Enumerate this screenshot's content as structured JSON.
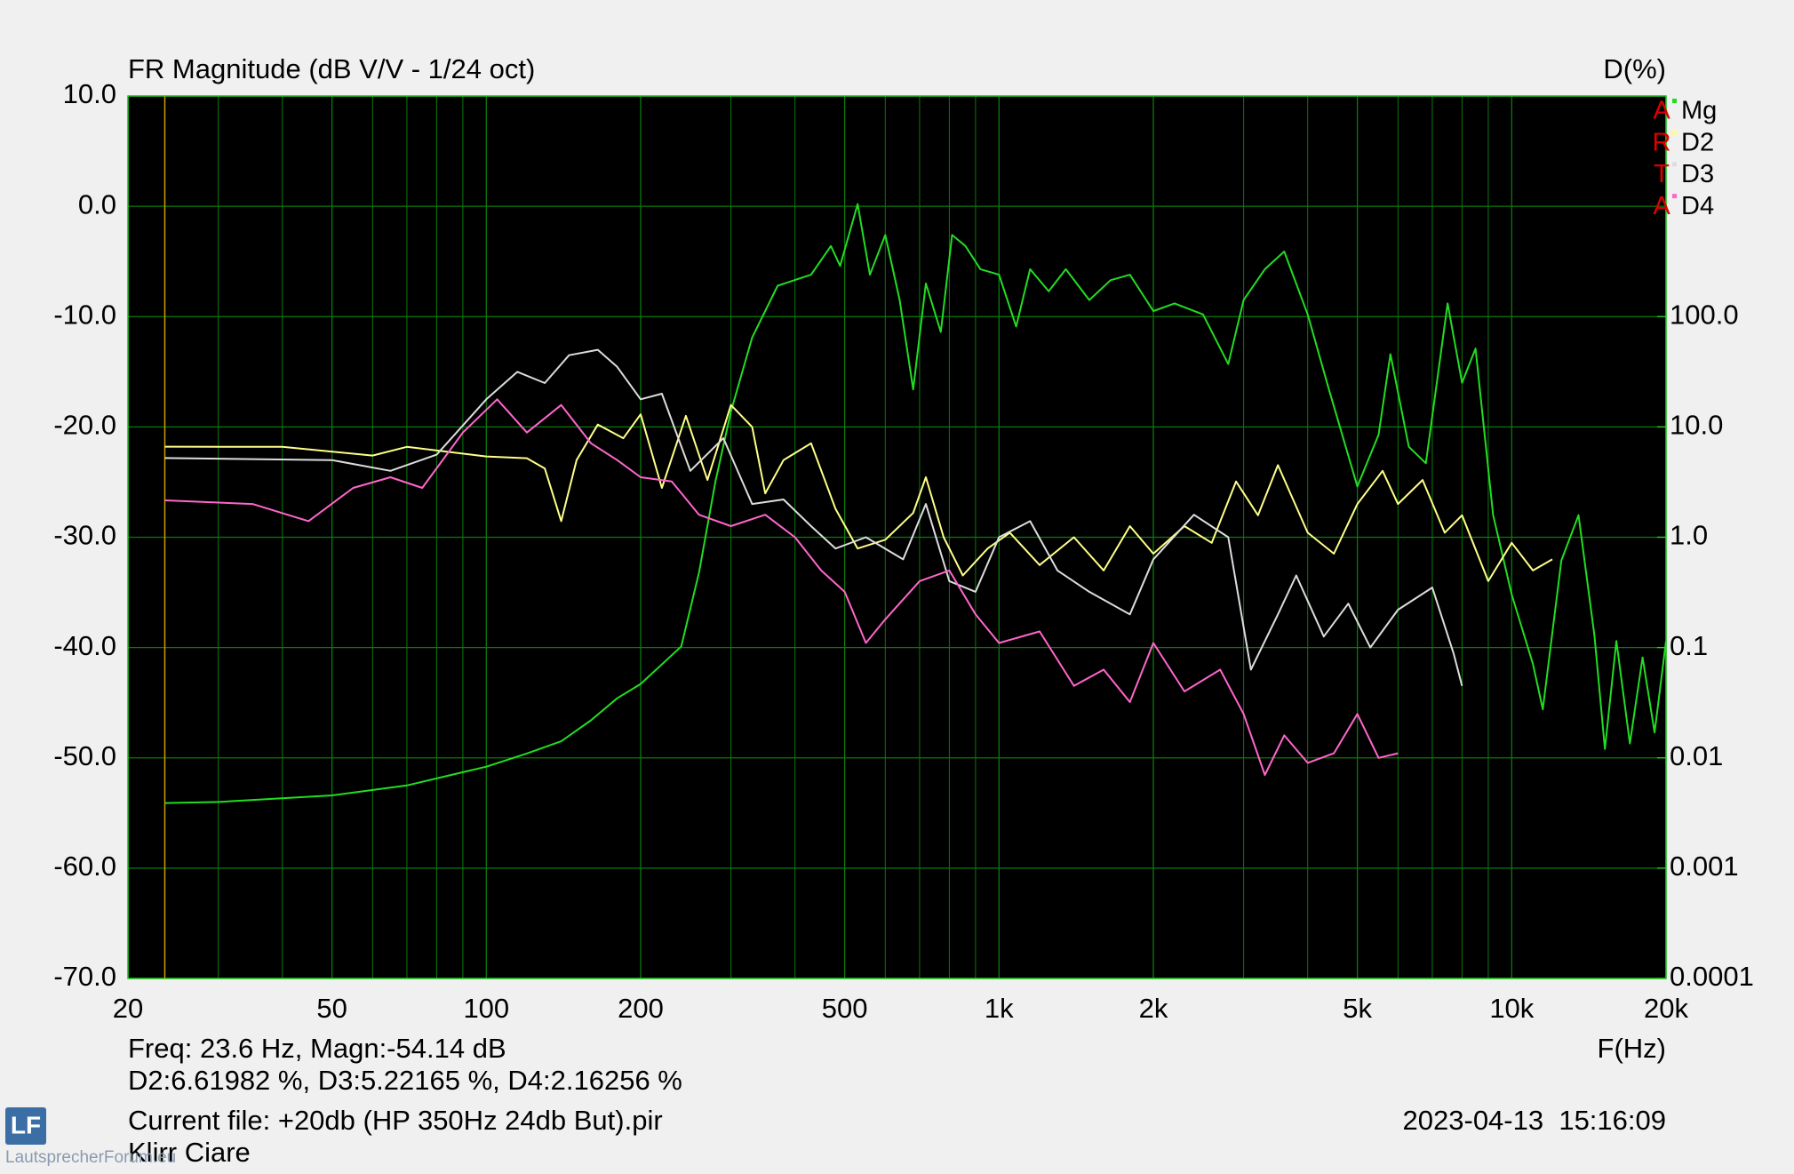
{
  "chart_data": {
    "type": "line",
    "title": "FR Magnitude (dB V/V - 1/24 oct)",
    "y2_label": "D(%)",
    "x_label": "F(Hz)",
    "xscale": "log",
    "y2scale": "log",
    "grid": true,
    "xlim": [
      20,
      20000
    ],
    "xticks": [
      20,
      50,
      100,
      200,
      500,
      {
        "value": 1000,
        "label": "1k"
      },
      {
        "value": 2000,
        "label": "2k"
      },
      {
        "value": 5000,
        "label": "5k"
      },
      {
        "value": 10000,
        "label": "10k"
      },
      {
        "value": 20000,
        "label": "20k"
      }
    ],
    "xminor_ticks": [
      30,
      40,
      60,
      70,
      80,
      90,
      300,
      400,
      600,
      700,
      800,
      900,
      3000,
      4000,
      6000,
      7000,
      8000,
      9000
    ],
    "ylim": [
      -70,
      10
    ],
    "yticks": [
      {
        "value": 10,
        "label": "10.0"
      },
      {
        "value": 0,
        "label": "0.0"
      },
      {
        "value": -10,
        "label": "-10.0"
      },
      {
        "value": -20,
        "label": "-20.0"
      },
      {
        "value": -30,
        "label": "-30.0"
      },
      {
        "value": -40,
        "label": "-40.0"
      },
      {
        "value": -50,
        "label": "-50.0"
      },
      {
        "value": -60,
        "label": "-60.0"
      },
      {
        "value": -70,
        "label": "-70.0"
      }
    ],
    "y2lim": [
      0.0001,
      10000
    ],
    "y2ticks": [
      {
        "value": 100,
        "label": "100.0"
      },
      {
        "value": 10,
        "label": "10.0"
      },
      {
        "value": 1,
        "label": "1.0"
      },
      0.1,
      0.01,
      0.001,
      0.0001
    ],
    "cursor_x": 23.6,
    "brand_letters": [
      "A",
      "R",
      "T",
      "A"
    ],
    "series": [
      {
        "name": "Mg",
        "color": "#22dd22",
        "x": [
          23.6,
          30,
          50,
          70,
          90,
          100,
          120,
          140,
          160,
          180,
          200,
          240,
          260,
          280,
          300,
          330,
          370,
          430,
          470,
          490,
          530,
          560,
          600,
          640,
          680,
          720,
          770,
          810,
          860,
          920,
          1000,
          1080,
          1150,
          1250,
          1350,
          1500,
          1650,
          1800,
          2000,
          2200,
          2500,
          2800,
          3000,
          3300,
          3600,
          4000,
          4400,
          5000,
          5500,
          5800,
          6300,
          6800,
          7500,
          8000,
          8500,
          9200,
          10000,
          11000,
          11500,
          12500,
          13500,
          14500,
          15200,
          16000,
          17000,
          18000,
          19000,
          20000
        ],
        "values": [
          -54.1,
          -54.0,
          -53.4,
          -52.5,
          -51.3,
          -50.8,
          -49.6,
          -48.5,
          -46.6,
          -44.6,
          -43.3,
          -39.9,
          -33.2,
          -24.9,
          -18.6,
          -11.9,
          -7.2,
          -6.2,
          -3.6,
          -5.4,
          0.2,
          -6.2,
          -2.6,
          -8.5,
          -16.6,
          -7.0,
          -11.4,
          -2.6,
          -3.6,
          -5.7,
          -6.2,
          -10.9,
          -5.7,
          -7.7,
          -5.7,
          -8.5,
          -6.7,
          -6.2,
          -9.5,
          -8.8,
          -9.8,
          -14.3,
          -8.5,
          -5.7,
          -4.1,
          -9.8,
          -16.6,
          -25.4,
          -20.7,
          -13.4,
          -21.8,
          -23.3,
          -8.8,
          -16.0,
          -12.9,
          -28.0,
          -35.2,
          -41.5,
          -45.6,
          -32.1,
          -28.0,
          -38.9,
          -49.2,
          -39.4,
          -48.7,
          -40.9,
          -47.7,
          -39.4
        ]
      },
      {
        "name": "D2",
        "color": "#ffff88",
        "axis": "y2",
        "x": [
          23.6,
          40,
          60,
          70,
          100,
          120,
          130,
          140,
          150,
          165,
          185,
          200,
          220,
          245,
          270,
          300,
          330,
          350,
          380,
          430,
          480,
          530,
          600,
          680,
          720,
          780,
          850,
          950,
          1050,
          1200,
          1400,
          1600,
          1800,
          2000,
          2300,
          2600,
          2900,
          3200,
          3500,
          4000,
          4500,
          5000,
          5600,
          6000,
          6700,
          7400,
          8000,
          9000,
          10000,
          11000,
          12000
        ],
        "values": [
          6.62,
          6.6,
          5.5,
          6.6,
          5.4,
          5.2,
          4.2,
          1.4,
          5.0,
          10.5,
          7.9,
          13,
          2.8,
          12.6,
          3.3,
          15.8,
          10,
          2.5,
          5,
          7.1,
          1.8,
          0.79,
          0.95,
          1.66,
          3.5,
          1.0,
          0.45,
          0.79,
          1.1,
          0.56,
          1.0,
          0.5,
          1.26,
          0.71,
          1.26,
          0.89,
          3.2,
          1.58,
          4.5,
          1.1,
          0.71,
          2.0,
          4.0,
          2.0,
          3.3,
          1.1,
          1.58,
          0.4,
          0.89,
          0.5,
          0.63
        ]
      },
      {
        "name": "D3",
        "color": "#dddddd",
        "axis": "y2",
        "x": [
          23.6,
          50,
          65,
          80,
          100,
          115,
          130,
          145,
          165,
          180,
          200,
          220,
          250,
          290,
          330,
          380,
          430,
          480,
          550,
          650,
          720,
          800,
          900,
          1000,
          1150,
          1300,
          1500,
          1800,
          2000,
          2400,
          2800,
          3100,
          3500,
          3800,
          4300,
          4800,
          5300,
          6000,
          7000,
          7700,
          8000
        ],
        "values": [
          5.22,
          5.0,
          4.0,
          5.6,
          17.8,
          31.6,
          25,
          44.7,
          50,
          35,
          17.8,
          20,
          4,
          7.9,
          2.0,
          2.2,
          1.26,
          0.79,
          1.0,
          0.63,
          2.0,
          0.4,
          0.32,
          1.0,
          1.4,
          0.5,
          0.32,
          0.2,
          0.63,
          1.6,
          1.0,
          0.063,
          0.2,
          0.45,
          0.126,
          0.25,
          0.1,
          0.22,
          0.35,
          0.089,
          0.045
        ]
      },
      {
        "name": "D4",
        "color": "#ff66cc",
        "axis": "y2",
        "x": [
          23.6,
          35,
          45,
          55,
          65,
          75,
          90,
          105,
          120,
          140,
          160,
          180,
          200,
          230,
          260,
          300,
          350,
          400,
          450,
          500,
          550,
          600,
          700,
          800,
          900,
          1000,
          1200,
          1400,
          1600,
          1800,
          2000,
          2300,
          2700,
          3000,
          3300,
          3600,
          4000,
          4500,
          5000,
          5500,
          6000
        ],
        "values": [
          2.16,
          2.0,
          1.4,
          2.8,
          3.5,
          2.8,
          8.9,
          17.8,
          8.9,
          15.8,
          7.1,
          5.0,
          3.5,
          3.2,
          1.6,
          1.26,
          1.6,
          1.0,
          0.5,
          0.32,
          0.11,
          0.18,
          0.4,
          0.5,
          0.2,
          0.11,
          0.14,
          0.045,
          0.063,
          0.032,
          0.11,
          0.04,
          0.063,
          0.025,
          0.007,
          0.016,
          0.009,
          0.011,
          0.025,
          0.01,
          0.011
        ]
      }
    ],
    "readout": [
      "Freq: 23.6 Hz, Magn:-54.14 dB",
      "D2:6.61982 %, D3:5.22165 %, D4:2.16256 %",
      "Current file: +20db (HP 350Hz 24db But).pir",
      "Klirr Ciare"
    ],
    "timestamp": "2023-04-13  15:16:09",
    "logo": "LF",
    "watermark": "LautsprecherForum.eu"
  }
}
